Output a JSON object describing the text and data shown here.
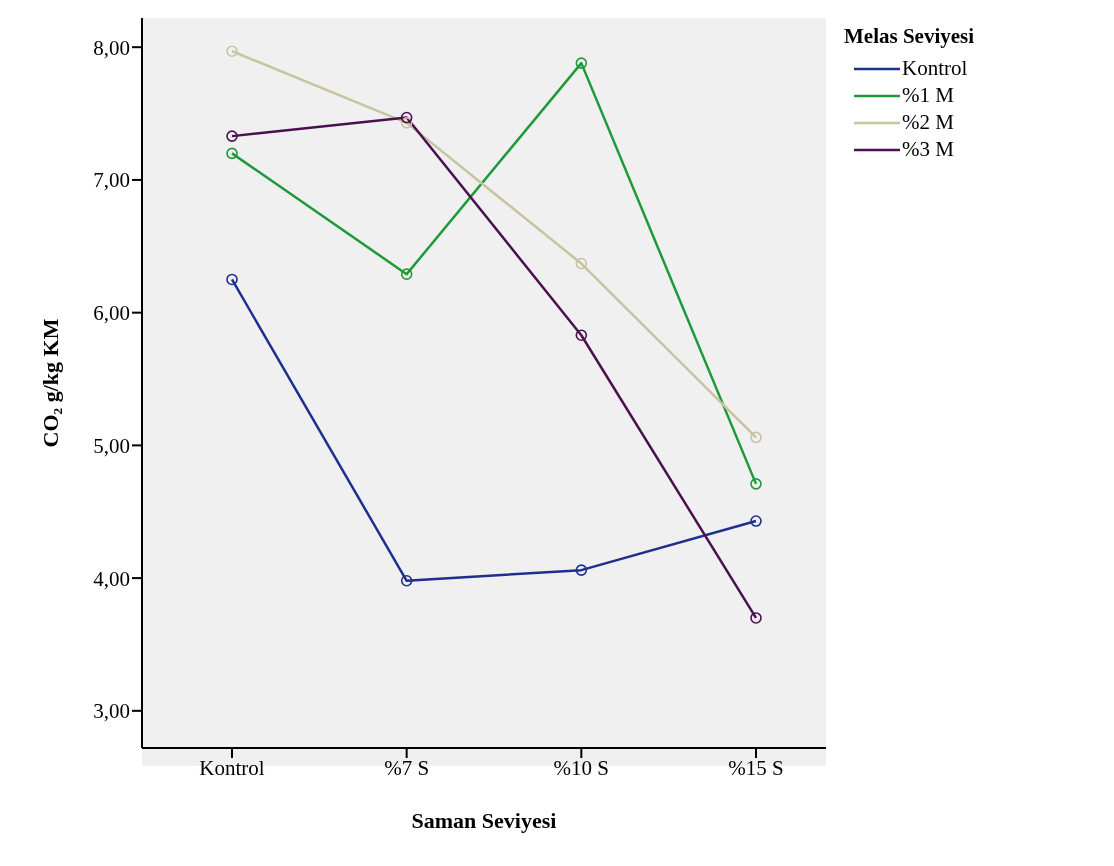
{
  "chart_data": {
    "type": "line",
    "xlabel": "Saman Seviyesi",
    "ylabel": "CO₂ g/kg KM",
    "legend_title": "Melas Seviyesi",
    "legend": "top right",
    "marker": "circle",
    "line_style": "solid",
    "grid": false,
    "categories": [
      "Kontrol",
      "%7 S",
      "%10 S",
      "%15 S"
    ],
    "ylim": [
      2.72,
      8.22
    ],
    "yticks": [
      {
        "value": 3,
        "label": "3,00"
      },
      {
        "value": 4,
        "label": "4,00"
      },
      {
        "value": 5,
        "label": "5,00"
      },
      {
        "value": 6,
        "label": "6,00"
      },
      {
        "value": 7,
        "label": "7,00"
      },
      {
        "value": 8,
        "label": "8,00"
      }
    ],
    "series": [
      {
        "name": "Kontrol",
        "color": "#1f2f8f",
        "values": [
          6.25,
          3.98,
          4.06,
          4.43
        ]
      },
      {
        "name": "%1 M",
        "color": "#1e9a3a",
        "values": [
          7.2,
          6.29,
          7.88,
          4.71
        ]
      },
      {
        "name": "%2 M",
        "color": "#c8c4a0",
        "values": [
          7.97,
          7.43,
          6.37,
          5.06
        ]
      },
      {
        "name": "%3 M",
        "color": "#4b1050",
        "values": [
          7.33,
          7.47,
          5.83,
          3.7
        ]
      }
    ]
  }
}
